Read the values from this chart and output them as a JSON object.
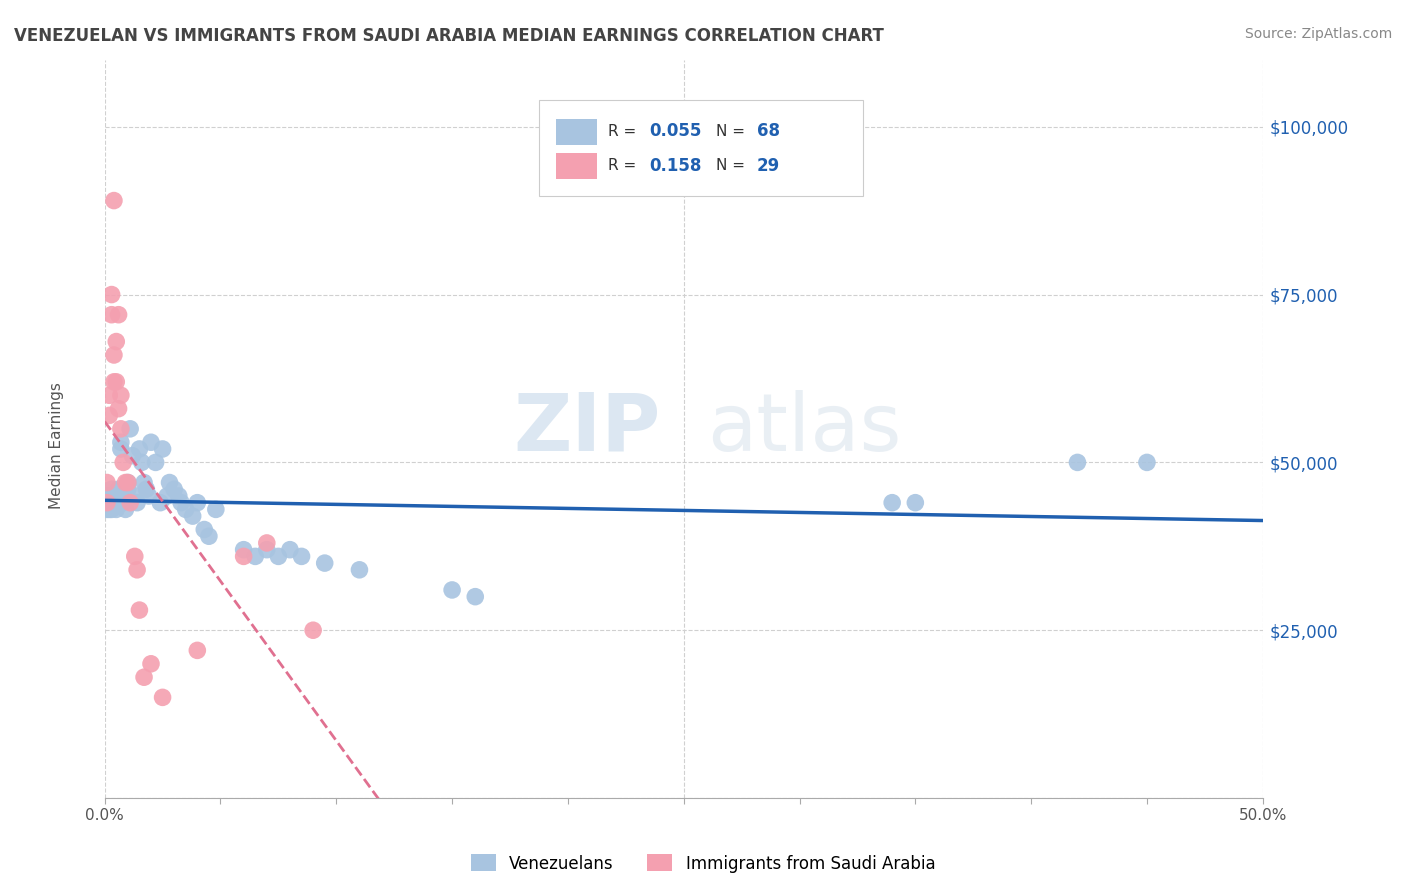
{
  "title": "VENEZUELAN VS IMMIGRANTS FROM SAUDI ARABIA MEDIAN EARNINGS CORRELATION CHART",
  "source": "Source: ZipAtlas.com",
  "ylabel": "Median Earnings",
  "xlim": [
    0,
    0.5
  ],
  "ylim": [
    0,
    110000
  ],
  "yticks": [
    0,
    25000,
    50000,
    75000,
    100000
  ],
  "ytick_labels": [
    "",
    "$25,000",
    "$50,000",
    "$75,000",
    "$100,000"
  ],
  "xticks": [
    0.0,
    0.05,
    0.1,
    0.15,
    0.2,
    0.25,
    0.3,
    0.35,
    0.4,
    0.45,
    0.5
  ],
  "xtick_labels": [
    "0.0%",
    "",
    "",
    "",
    "",
    "",
    "",
    "",
    "",
    "",
    "50.0%"
  ],
  "watermark_zip": "ZIP",
  "watermark_atlas": "atlas",
  "legend_R1_val": "0.055",
  "legend_N1_val": "68",
  "legend_R2_val": "0.158",
  "legend_N2_val": "29",
  "venezuelan_color": "#a8c4e0",
  "saudi_color": "#f4a0b0",
  "venezuelan_line_color": "#2060b0",
  "saudi_line_color": "#e07090",
  "background_color": "#ffffff",
  "grid_color": "#d0d0d0",
  "venezuelan_x": [
    0.001,
    0.001,
    0.001,
    0.001,
    0.002,
    0.002,
    0.002,
    0.002,
    0.003,
    0.003,
    0.003,
    0.003,
    0.004,
    0.004,
    0.004,
    0.005,
    0.005,
    0.005,
    0.005,
    0.006,
    0.006,
    0.006,
    0.007,
    0.007,
    0.007,
    0.008,
    0.008,
    0.009,
    0.01,
    0.01,
    0.011,
    0.012,
    0.013,
    0.014,
    0.015,
    0.016,
    0.017,
    0.018,
    0.019,
    0.02,
    0.022,
    0.024,
    0.025,
    0.027,
    0.028,
    0.03,
    0.032,
    0.033,
    0.035,
    0.038,
    0.04,
    0.043,
    0.045,
    0.048,
    0.06,
    0.065,
    0.07,
    0.075,
    0.08,
    0.085,
    0.095,
    0.11,
    0.15,
    0.16,
    0.34,
    0.35,
    0.42,
    0.45
  ],
  "venezuelan_y": [
    44000,
    44500,
    43000,
    45000,
    44000,
    43500,
    44500,
    43000,
    46000,
    44000,
    43000,
    44500,
    45000,
    43500,
    44000,
    44000,
    45000,
    43000,
    43500,
    45000,
    44000,
    46000,
    45000,
    52000,
    53000,
    44000,
    45000,
    43000,
    47000,
    46000,
    55000,
    51000,
    45000,
    44000,
    52000,
    50000,
    47000,
    46000,
    45000,
    53000,
    50000,
    44000,
    52000,
    45000,
    47000,
    46000,
    45000,
    44000,
    43000,
    42000,
    44000,
    40000,
    39000,
    43000,
    37000,
    36000,
    37000,
    36000,
    37000,
    36000,
    35000,
    34000,
    31000,
    30000,
    44000,
    44000,
    50000,
    50000
  ],
  "saudi_x": [
    0.001,
    0.001,
    0.002,
    0.002,
    0.003,
    0.003,
    0.004,
    0.004,
    0.004,
    0.005,
    0.005,
    0.006,
    0.006,
    0.007,
    0.007,
    0.008,
    0.009,
    0.01,
    0.011,
    0.013,
    0.014,
    0.015,
    0.017,
    0.02,
    0.025,
    0.04,
    0.06,
    0.07,
    0.09
  ],
  "saudi_y": [
    44000,
    47000,
    57000,
    60000,
    72000,
    75000,
    62000,
    66000,
    89000,
    62000,
    68000,
    58000,
    72000,
    55000,
    60000,
    50000,
    47000,
    47000,
    44000,
    36000,
    34000,
    28000,
    18000,
    20000,
    15000,
    22000,
    36000,
    38000,
    25000
  ]
}
